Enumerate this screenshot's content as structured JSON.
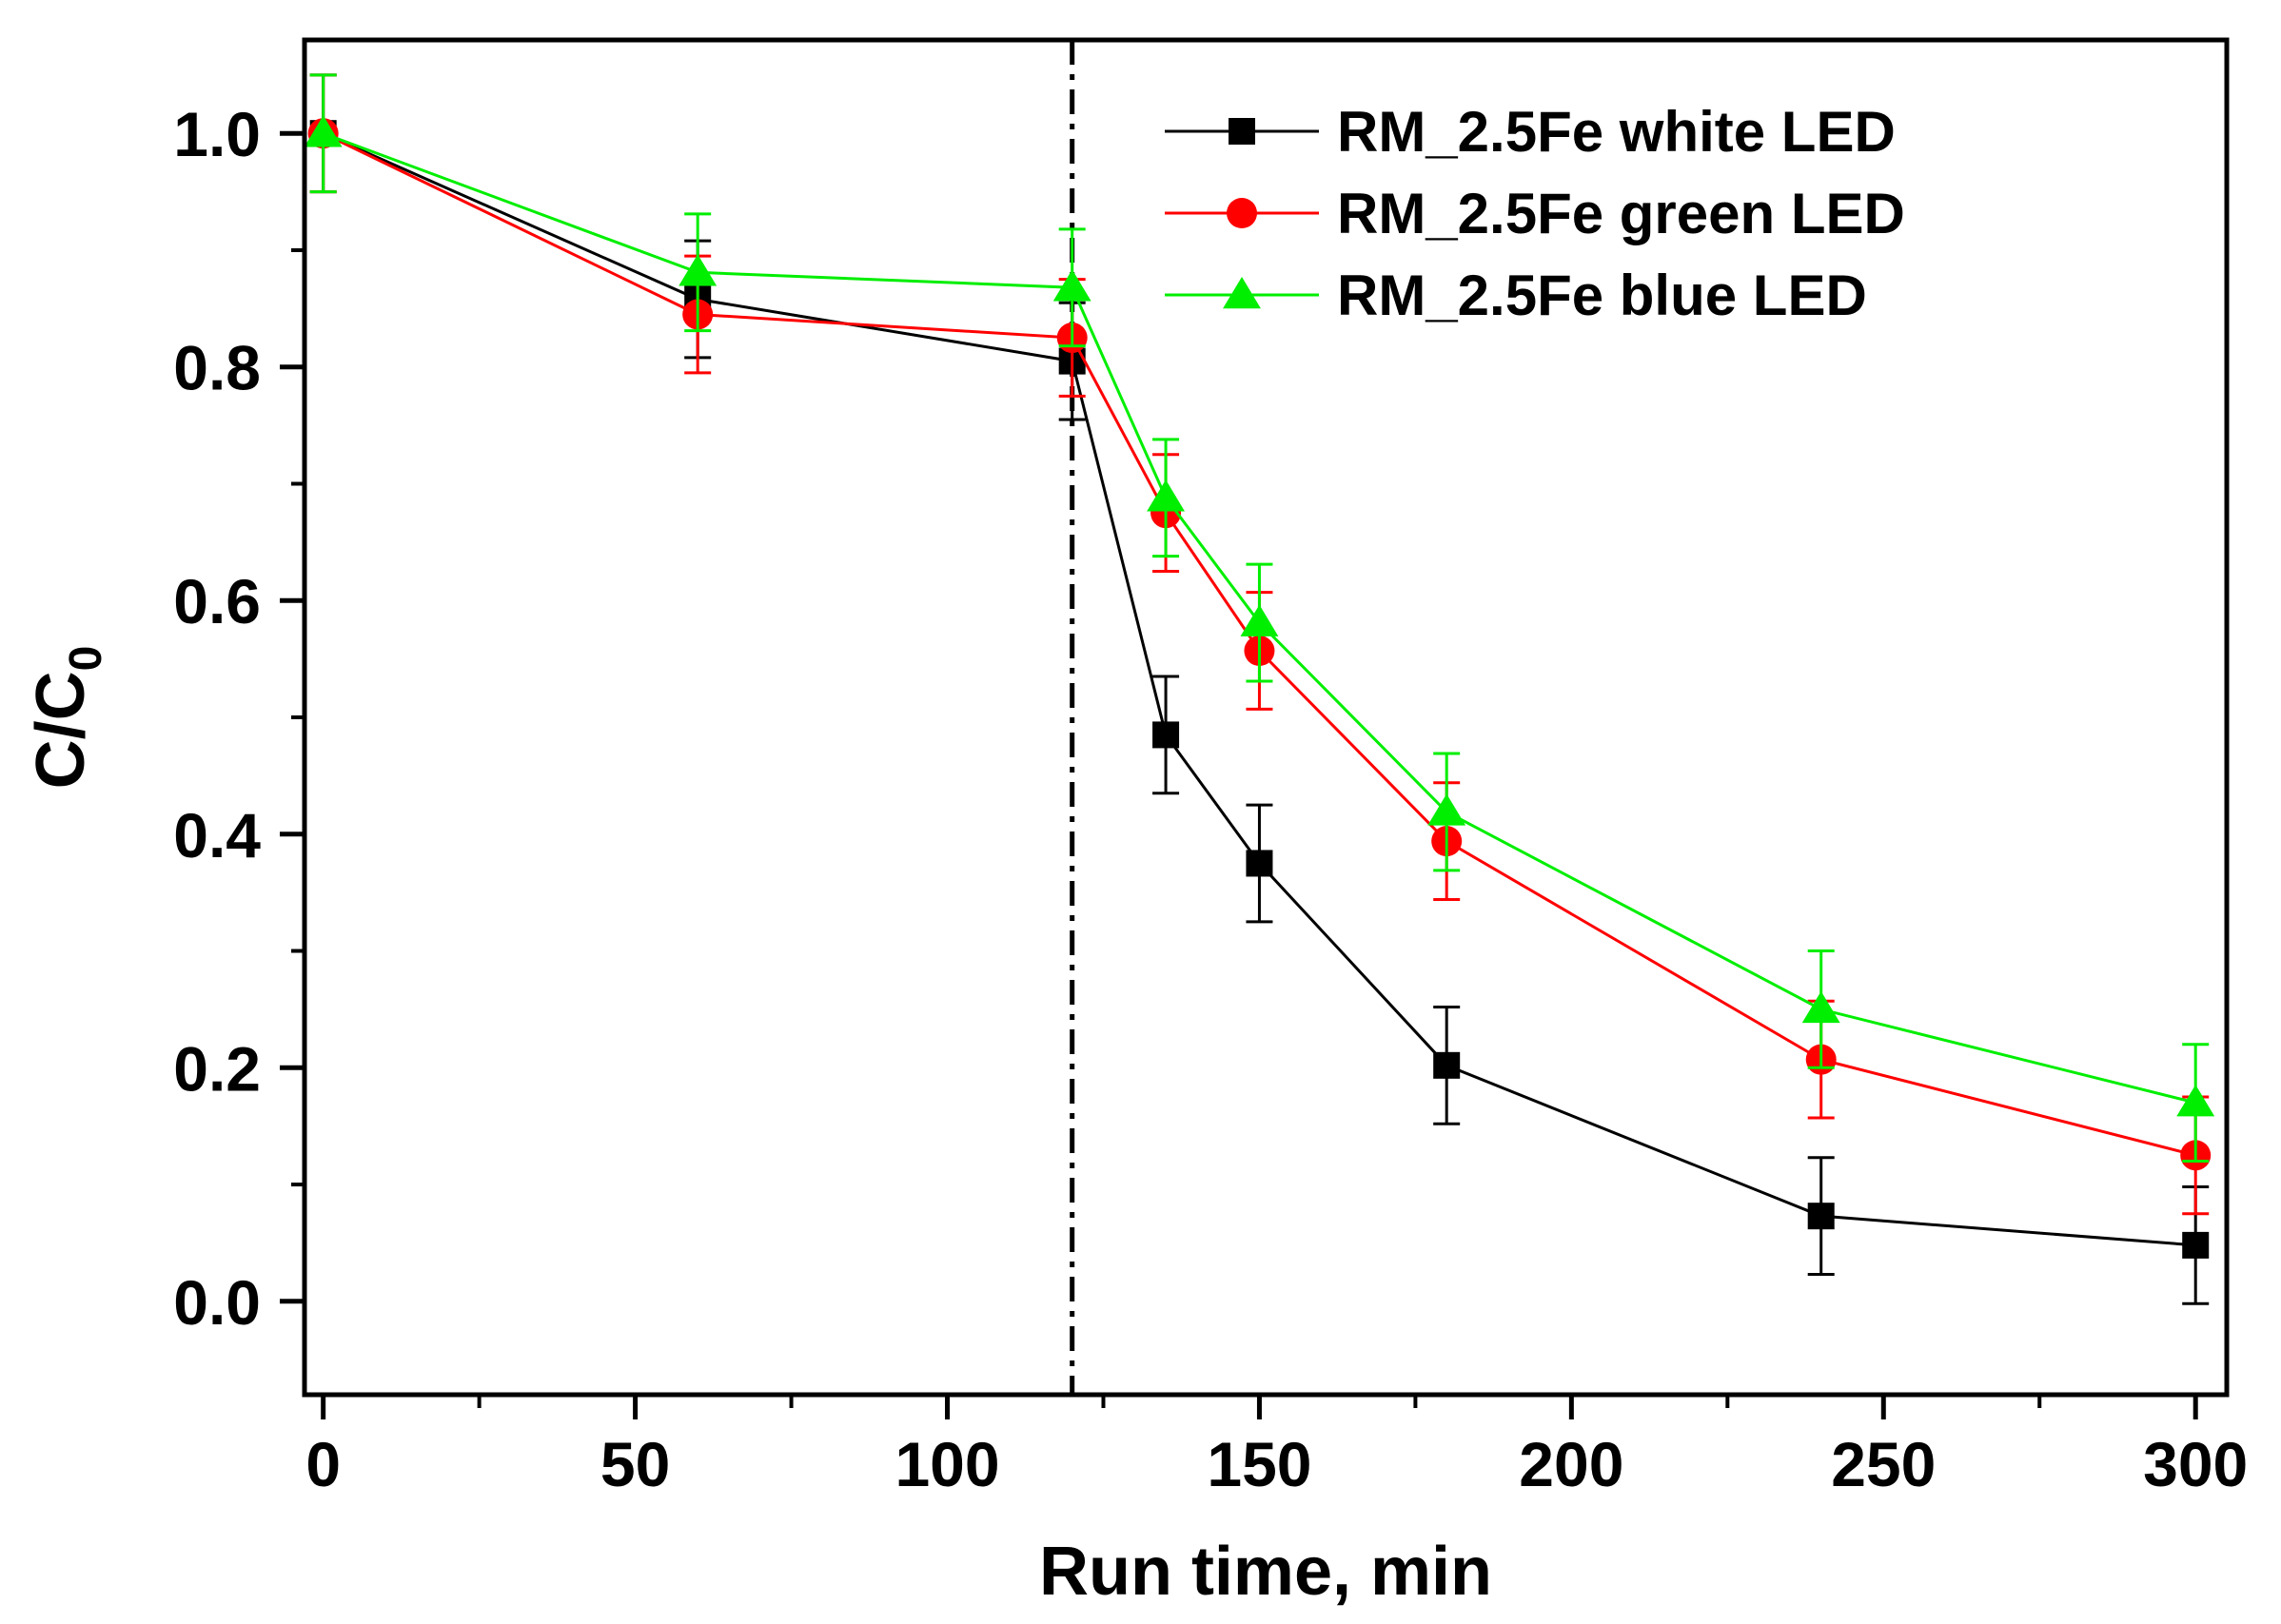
{
  "chart_data": {
    "type": "line",
    "title": "",
    "xlabel": "Run time, min",
    "ylabel_main": "C/C",
    "ylabel_sub": "0",
    "xlim": [
      -3,
      305
    ],
    "ylim": [
      -0.08,
      1.08
    ],
    "x_ticks": [
      0,
      50,
      100,
      150,
      200,
      250,
      300
    ],
    "x_tick_labels": [
      "0",
      "50",
      "100",
      "150",
      "200",
      "250",
      "300"
    ],
    "x_minor_ticks": [
      25,
      75,
      125,
      175,
      225,
      275
    ],
    "y_ticks": [
      0.0,
      0.2,
      0.4,
      0.6,
      0.8,
      1.0
    ],
    "y_tick_labels": [
      "0.0",
      "0.2",
      "0.4",
      "0.6",
      "0.8",
      "1.0"
    ],
    "y_minor_ticks": [
      0.1,
      0.3,
      0.5,
      0.7,
      0.9
    ],
    "grid": false,
    "legend_position": "top-right",
    "reference_line": {
      "x": 120,
      "style": "dash-dot",
      "color": "#000000"
    },
    "x": [
      0,
      60,
      120,
      135,
      150,
      180,
      240,
      300
    ],
    "series": [
      {
        "name": "RM_2.5Fe white LED",
        "color": "#000000",
        "marker": "square",
        "values": [
          1.0,
          0.858,
          0.805,
          0.485,
          0.375,
          0.202,
          0.073,
          0.048
        ],
        "error": [
          0.05,
          0.05,
          0.05,
          0.05,
          0.05,
          0.05,
          0.05,
          0.05
        ]
      },
      {
        "name": "RM_2.5Fe green LED",
        "color": "#ff0000",
        "marker": "circle",
        "values": [
          1.0,
          0.845,
          0.825,
          0.675,
          0.557,
          0.394,
          0.207,
          0.125
        ],
        "error": [
          0.05,
          0.05,
          0.05,
          0.05,
          0.05,
          0.05,
          0.05,
          0.05
        ]
      },
      {
        "name": "RM_2.5Fe blue LED",
        "color": "#00ee00",
        "marker": "triangle",
        "values": [
          1.0,
          0.881,
          0.868,
          0.688,
          0.581,
          0.419,
          0.25,
          0.17
        ],
        "error": [
          0.05,
          0.05,
          0.05,
          0.05,
          0.05,
          0.05,
          0.05,
          0.05
        ]
      }
    ]
  }
}
